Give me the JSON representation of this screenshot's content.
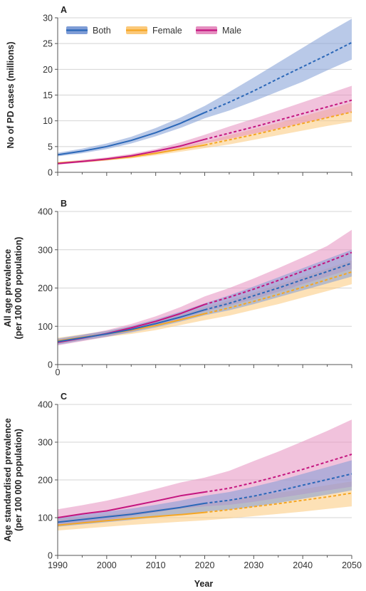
{
  "colors": {
    "both": "#2a67b8",
    "female": "#f5a623",
    "male": "#c4157f",
    "both_band": "#7f9dd6",
    "female_band": "#fbc97a",
    "male_band": "#e58fc0",
    "grid": "#d4d4d4",
    "axis": "#555555"
  },
  "legend": {
    "labels": [
      "Both",
      "Female",
      "Male"
    ]
  },
  "xlabel": "Year",
  "panels": [
    {
      "label": "A",
      "ylabel": [
        "No of PD cases (millions)"
      ],
      "ylabel_axis_label": "No of PD cases (millions)",
      "yticks": [
        "0",
        "5",
        "10",
        "15",
        "20",
        "25",
        "30"
      ],
      "extra_tick": "",
      "xticks": [
        "",
        "",
        "",
        "",
        "",
        "",
        "",
        "",
        "",
        "",
        ""
      ]
    },
    {
      "label": "B",
      "ylabel": [
        "All age prevalence",
        "(per 100 000 population)"
      ],
      "yticks": [
        "0",
        "100",
        "200",
        "300",
        "400"
      ],
      "extra_tick": "0",
      "xticks": [
        "",
        "",
        "",
        "",
        "",
        "",
        "",
        "",
        "",
        "",
        ""
      ]
    },
    {
      "label": "C",
      "ylabel": [
        "Age standardised prevalence",
        "(per 100 000 population)"
      ],
      "yticks": [
        "0",
        "100",
        "200",
        "300",
        "400"
      ],
      "extra_tick": "",
      "xticks": [
        "1990",
        "",
        "2000",
        "",
        "2010",
        "",
        "2020",
        "",
        "2030",
        "",
        "2040",
        "",
        "2050"
      ]
    }
  ],
  "chart_data": [
    {
      "type": "line",
      "title": "A",
      "xlabel": "",
      "ylabel": "No of PD cases (millions)",
      "xlim": [
        1990,
        2050
      ],
      "ylim": [
        0,
        30
      ],
      "grid": true,
      "legend_position": "top-left",
      "x": [
        1990,
        1995,
        2000,
        2005,
        2010,
        2015,
        2020,
        2025,
        2030,
        2035,
        2040,
        2045,
        2050
      ],
      "projection_start": 2020,
      "series": [
        {
          "name": "Both",
          "values": [
            3.4,
            4.1,
            5.0,
            6.2,
            7.7,
            9.5,
            11.6,
            13.6,
            15.8,
            18.2,
            20.5,
            22.8,
            25.2
          ],
          "lower": [
            3.1,
            3.7,
            4.5,
            5.6,
            7.0,
            8.6,
            10.5,
            12.0,
            13.8,
            15.7,
            17.6,
            19.8,
            21.9
          ],
          "upper": [
            3.8,
            4.6,
            5.6,
            6.9,
            8.6,
            10.6,
            12.9,
            15.6,
            18.4,
            21.3,
            24.2,
            27.1,
            29.8
          ]
        },
        {
          "name": "Female",
          "values": [
            1.8,
            2.1,
            2.5,
            3.0,
            3.7,
            4.5,
            5.3,
            6.3,
            7.3,
            8.4,
            9.5,
            10.6,
            11.7
          ],
          "lower": [
            1.6,
            1.9,
            2.3,
            2.7,
            3.3,
            4.0,
            4.7,
            5.4,
            6.3,
            7.2,
            8.1,
            9.0,
            9.8
          ],
          "upper": [
            2.0,
            2.4,
            2.8,
            3.4,
            4.1,
            5.0,
            5.9,
            7.2,
            8.4,
            9.6,
            10.9,
            12.2,
            13.5
          ]
        },
        {
          "name": "Male",
          "values": [
            1.7,
            2.1,
            2.6,
            3.2,
            4.1,
            5.1,
            6.4,
            7.6,
            8.8,
            10.1,
            11.4,
            12.7,
            14.0
          ],
          "lower": [
            1.5,
            1.9,
            2.3,
            2.9,
            3.6,
            4.5,
            5.6,
            6.5,
            7.5,
            8.5,
            9.6,
            10.6,
            11.7
          ],
          "upper": [
            1.9,
            2.4,
            2.9,
            3.6,
            4.5,
            5.8,
            7.3,
            8.9,
            10.4,
            12.0,
            13.6,
            15.2,
            16.8
          ]
        }
      ]
    },
    {
      "type": "line",
      "title": "B",
      "xlabel": "",
      "ylabel": "All age prevalence (per 100 000 population)",
      "xlim": [
        1990,
        2050
      ],
      "ylim": [
        0,
        400
      ],
      "grid": true,
      "x": [
        1990,
        1995,
        2000,
        2005,
        2010,
        2015,
        2020,
        2025,
        2030,
        2035,
        2040,
        2045,
        2050
      ],
      "projection_start": 2020,
      "series": [
        {
          "name": "Both",
          "values": [
            60,
            70,
            80,
            92,
            107,
            124,
            143,
            160,
            180,
            200,
            222,
            243,
            265
          ],
          "lower": [
            52,
            63,
            73,
            84,
            97,
            112,
            129,
            142,
            158,
            176,
            194,
            212,
            230
          ],
          "upper": [
            68,
            78,
            88,
            101,
            118,
            138,
            160,
            181,
            204,
            228,
            252,
            276,
            300
          ]
        },
        {
          "name": "Female",
          "values": [
            62,
            71,
            80,
            90,
            102,
            117,
            133,
            148,
            165,
            183,
            202,
            222,
            242
          ],
          "lower": [
            54,
            63,
            72,
            80,
            90,
            103,
            116,
            128,
            143,
            158,
            175,
            192,
            210
          ],
          "upper": [
            70,
            79,
            88,
            99,
            114,
            131,
            150,
            168,
            188,
            209,
            230,
            251,
            272
          ]
        },
        {
          "name": "Male",
          "values": [
            58,
            69,
            81,
            96,
            113,
            133,
            157,
            176,
            197,
            220,
            244,
            268,
            293
          ],
          "lower": [
            50,
            61,
            72,
            86,
            101,
            118,
            139,
            154,
            171,
            190,
            210,
            230,
            250
          ],
          "upper": [
            66,
            77,
            90,
            106,
            126,
            150,
            178,
            200,
            225,
            252,
            280,
            310,
            352
          ]
        }
      ]
    },
    {
      "type": "line",
      "title": "C",
      "xlabel": "Year",
      "ylabel": "Age standardised prevalence (per 100 000 population)",
      "xlim": [
        1990,
        2050
      ],
      "ylim": [
        0,
        400
      ],
      "grid": true,
      "x": [
        1990,
        1995,
        2000,
        2005,
        2010,
        2015,
        2020,
        2025,
        2030,
        2035,
        2040,
        2045,
        2050
      ],
      "projection_start": 2020,
      "series": [
        {
          "name": "Both",
          "values": [
            88,
            95,
            102,
            109,
            118,
            127,
            138,
            146,
            157,
            171,
            186,
            201,
            216
          ],
          "lower": [
            76,
            82,
            88,
            94,
            101,
            108,
            116,
            121,
            129,
            139,
            150,
            161,
            172
          ],
          "upper": [
            100,
            108,
            116,
            124,
            134,
            145,
            158,
            168,
            182,
            198,
            216,
            234,
            252
          ]
        },
        {
          "name": "Female",
          "values": [
            80,
            86,
            92,
            98,
            103,
            108,
            114,
            121,
            129,
            137,
            146,
            155,
            165
          ],
          "lower": [
            66,
            71,
            76,
            81,
            85,
            89,
            93,
            98,
            104,
            110,
            116,
            123,
            130
          ],
          "upper": [
            96,
            102,
            108,
            115,
            122,
            129,
            137,
            146,
            156,
            166,
            176,
            186,
            196
          ]
        },
        {
          "name": "Male",
          "values": [
            100,
            110,
            118,
            131,
            144,
            158,
            168,
            178,
            193,
            210,
            228,
            248,
            268
          ],
          "lower": [
            80,
            87,
            94,
            104,
            114,
            124,
            130,
            134,
            142,
            152,
            162,
            172,
            182
          ],
          "upper": [
            122,
            133,
            145,
            160,
            176,
            193,
            206,
            224,
            250,
            275,
            302,
            330,
            360
          ]
        }
      ]
    }
  ]
}
